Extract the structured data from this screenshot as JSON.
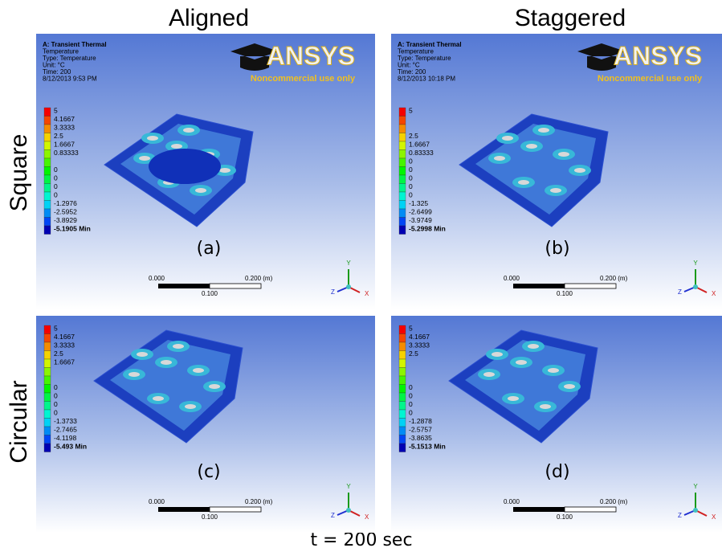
{
  "column_titles": [
    "Aligned",
    "Staggered"
  ],
  "row_titles": [
    "Square",
    "Circular"
  ],
  "footer": "t = 200 sec",
  "panels": [
    {
      "caption": "(a)",
      "header": [
        "A: Transient Thermal",
        "Temperature",
        "Type: Temperature",
        "Unit: °C",
        "Time: 200",
        "8/12/2013 9:53 PM"
      ],
      "watermark": {
        "logo": "ANSYS",
        "notice": "Noncommercial use only"
      },
      "legend": [
        "5",
        "4.1667",
        "3.3333",
        "2.5",
        "1.6667",
        "0.83333",
        null,
        "0",
        "0",
        "0",
        "0",
        "-1.2976",
        "-2.5952",
        "-3.8929",
        "-5.1905 Min"
      ],
      "scale": {
        "start": "0.000",
        "end": "0.200 (m)",
        "middle": "0.100"
      },
      "axes": {
        "y": "Y",
        "z": "Z",
        "x": "X"
      }
    },
    {
      "caption": "(b)",
      "header": [
        "A: Transient Thermal",
        "Temperature",
        "Type: Temperature",
        "Unit: °C",
        "Time: 200",
        "8/12/2013 10:18 PM"
      ],
      "watermark": {
        "logo": "ANSYS",
        "notice": "Noncommercial use only"
      },
      "legend": [
        "5",
        null,
        null,
        "2.5",
        "1.6667",
        "0.83333",
        "0",
        "0",
        "0",
        "0",
        "0",
        "-1.325",
        "-2.6499",
        "-3.9749",
        "-5.2998 Min"
      ],
      "scale": {
        "start": "0.000",
        "end": "0.200 (m)",
        "middle": "0.100"
      },
      "axes": {
        "y": "Y",
        "z": "Z",
        "x": "X"
      }
    },
    {
      "caption": "(c)",
      "legend": [
        "5",
        "4.1667",
        "3.3333",
        "2.5",
        "1.6667",
        null,
        null,
        "0",
        "0",
        "0",
        "0",
        "-1.3733",
        "-2.7465",
        "-4.1198",
        "-5.493 Min"
      ],
      "scale": {
        "start": "0.000",
        "end": "0.200 (m)",
        "middle": "0.100"
      },
      "axes": {
        "y": "Y",
        "z": "Z",
        "x": "X"
      }
    },
    {
      "caption": "(d)",
      "legend": [
        "5",
        "4.1667",
        "3.3333",
        "2.5",
        null,
        null,
        null,
        "0",
        "0",
        "0",
        "0",
        "-1.2878",
        "-2.5757",
        "-3.8635",
        "-5.1513 Min"
      ],
      "scale": {
        "start": "0.000",
        "end": "0.200 (m)",
        "middle": "0.100"
      },
      "axes": {
        "y": "Y",
        "z": "Z",
        "x": "X"
      }
    }
  ]
}
